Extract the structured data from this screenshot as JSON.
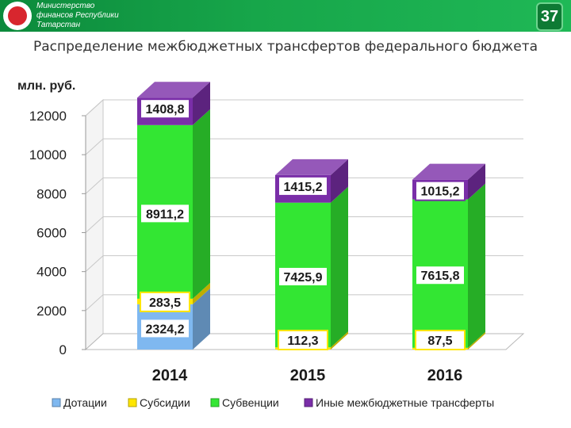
{
  "header": {
    "org_name": "Министерство финансов Республики Татарстан",
    "page_number": "37"
  },
  "colors": {
    "header_green": "#17a64a",
    "dotations": "#7fb8f0",
    "subsidies": "#ffe600",
    "subventions": "#33e633",
    "other": "#7a2ea8"
  },
  "chart_data": {
    "type": "bar",
    "stacked": true,
    "three_d": true,
    "title": "Распределение межбюджетных трансфертов федерального бюджета",
    "ylabel": "млн. руб.",
    "xlabel": "",
    "ylim": [
      0,
      12000
    ],
    "yticks": [
      "0",
      "2000",
      "4000",
      "6000",
      "8000",
      "10000",
      "12000"
    ],
    "grid": true,
    "legend_position": "bottom",
    "categories": [
      "2014",
      "2015",
      "2016"
    ],
    "series": [
      {
        "name": "Дотации",
        "color": "#7fb8f0",
        "values": [
          2324.2,
          0,
          0
        ],
        "labels": [
          "2324,2",
          "",
          ""
        ]
      },
      {
        "name": "Субсидии",
        "color": "#ffe600",
        "values": [
          283.5,
          112.3,
          87.5
        ],
        "labels": [
          "283,5",
          "112,3",
          "87,5"
        ]
      },
      {
        "name": "Субвенции",
        "color": "#33e633",
        "values": [
          8911.2,
          7425.9,
          7615.8
        ],
        "labels": [
          "8911,2",
          "7425,9",
          "7615,8"
        ]
      },
      {
        "name": "Иные межбюджетные трансферты",
        "color": "#7a2ea8",
        "values": [
          1408.8,
          1415.2,
          1015.2
        ],
        "labels": [
          "1408,8",
          "1415,2",
          "1015,2"
        ]
      }
    ]
  }
}
